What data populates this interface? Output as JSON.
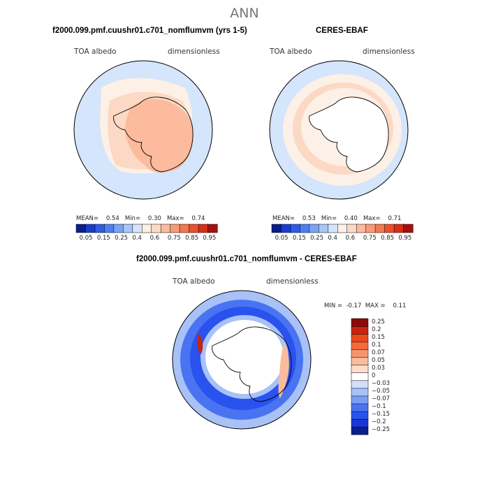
{
  "page_title": "ANN",
  "panels": [
    {
      "title": "f2000.099.pmf.cuushr01.c701_nomflumvm (yrs 1-5)",
      "variable": "TOA albedo",
      "units": "dimensionless",
      "stats": {
        "mean_label": "MEAN=",
        "mean": "0.54",
        "min_label": "Min=",
        "min": "0.30",
        "max_label": "Max=",
        "max": "0.74"
      }
    },
    {
      "title": "CERES-EBAF",
      "variable": "TOA albedo",
      "units": "dimensionless",
      "stats": {
        "mean_label": "MEAN=",
        "mean": "0.53",
        "min_label": "Min=",
        "min": "0.40",
        "max_label": "Max=",
        "max": "0.71"
      }
    },
    {
      "title": "f2000.099.pmf.cuushr01.c701_nomflumvm - CERES-EBAF",
      "variable": "TOA albedo",
      "units": "dimensionless",
      "stats": {
        "min_label": "MIN =",
        "min": "-0.17",
        "max_label": "MAX =",
        "max": "0.11"
      }
    }
  ],
  "colorbar_abs": {
    "colors": [
      "#0a1e8c",
      "#1a3dcc",
      "#2f5be6",
      "#4d7ff0",
      "#7aa2f5",
      "#a9c6fa",
      "#d4e5fc",
      "#fdf0e6",
      "#fcd9c4",
      "#fbbb9c",
      "#f99a77",
      "#f5764f",
      "#ec4f2e",
      "#d62e1a",
      "#a50f0f"
    ],
    "ticks": [
      "0.05",
      "0.15",
      "0.25",
      "0.4",
      "0.6",
      "0.75",
      "0.85",
      "0.95"
    ]
  },
  "colorbar_diff": {
    "colors": [
      "#0a1e8c",
      "#1836d6",
      "#2a52ee",
      "#4a73f2",
      "#7a9df5",
      "#a8c2f8",
      "#d0e0fb",
      "#ffffff",
      "#fcdccb",
      "#f9bc9c",
      "#f69470",
      "#f36a3d",
      "#e84a1c",
      "#c9240f",
      "#8c0a0a"
    ],
    "ticks": [
      "0.25",
      "0.2",
      "0.15",
      "0.1",
      "0.07",
      "0.05",
      "0.03",
      "0",
      "−0.03",
      "−0.05",
      "−0.07",
      "−0.1",
      "−0.15",
      "−0.2",
      "−0.25"
    ]
  }
}
